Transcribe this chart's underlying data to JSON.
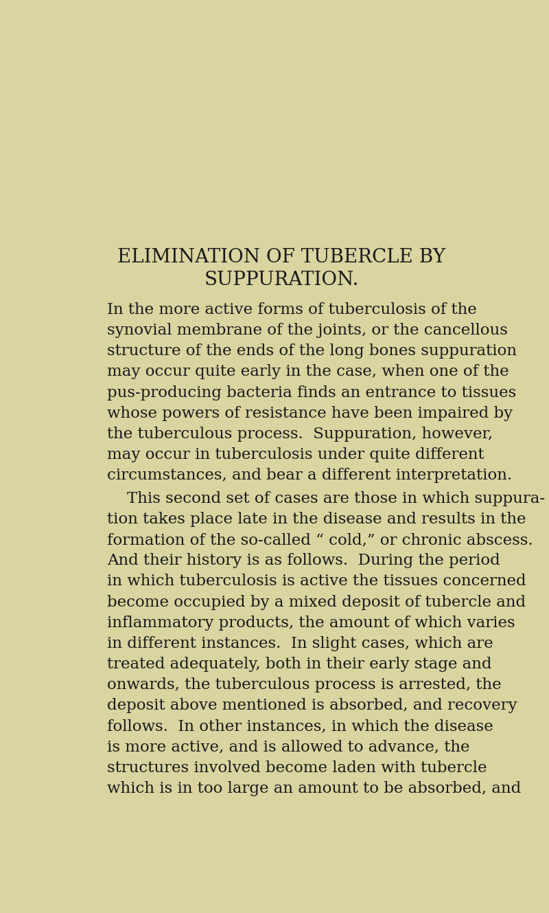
{
  "background_color": "#d9d4a0",
  "text_color": "#1a1a1a",
  "title_line1": "ELIMINATION OF TUBERCLE BY",
  "title_line2": "SUPPURATION.",
  "title_fontsize": 20,
  "title_font": "serif",
  "body_fontsize": 16.5,
  "body_font": "serif",
  "figsize": [
    8.0,
    13.29
  ],
  "dpi": 100,
  "p1_lines": [
    "In the more active forms of tuberculosis of the",
    "synovial membrane of the joints, or the cancellous",
    "structure of the ends of the long bones suppuration",
    "may occur quite early in the case, when one of the",
    "pus-producing bacteria finds an entrance to tissues",
    "whose powers of resistance have been impaired by",
    "the tuberculous process.  Suppuration, however,",
    "may occur in tuberculosis under quite different",
    "circumstances, and bear a different interpretation."
  ],
  "p2_lines": [
    "    This second set of cases are those in which suppura-",
    "tion takes place late in the disease and results in the",
    "formation of the so-called “ cold,” or chronic abscess.",
    "And their history is as follows.  During the period",
    "in which tuberculosis is active the tissues concerned",
    "become occupied by a mixed deposit of tubercle and",
    "inflammatory products, the amount of which varies",
    "in different instances.  In slight cases, which are",
    "treated adequately, both in their early stage and",
    "onwards, the tuberculous process is arrested, the",
    "deposit above mentioned is absorbed, and recovery",
    "follows.  In other instances, in which the disease",
    "is more active, and is allowed to advance, the",
    "structures involved become laden with tubercle",
    "which is in too large an amount to be absorbed, and"
  ]
}
